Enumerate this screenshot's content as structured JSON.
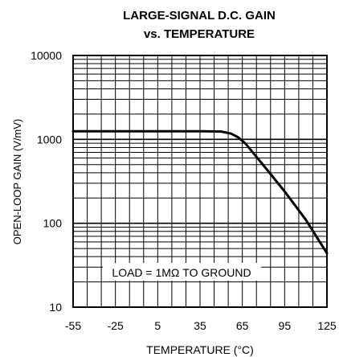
{
  "chart_data": {
    "type": "line",
    "title": "LARGE-SIGNAL D.C. GAIN",
    "subtitle": "vs. TEMPERATURE",
    "xlabel": "TEMPERATURE (°C)",
    "ylabel": "OPEN-LOOP GAIN (V/mV)",
    "xlim": [
      -55,
      125
    ],
    "ylim": [
      10,
      10000
    ],
    "yscale": "log",
    "grid": true,
    "x_ticks": [
      -55,
      -25,
      5,
      35,
      65,
      95,
      125
    ],
    "x_tick_labels": [
      "-55",
      "-25",
      "5",
      "35",
      "65",
      "95",
      "125"
    ],
    "y_ticks": [
      10,
      100,
      1000,
      10000
    ],
    "y_tick_labels": [
      "10",
      "100",
      "1000",
      "10000"
    ],
    "annotation": "LOAD = 1MΩ TO GROUND",
    "series": [
      {
        "x": [
          -55,
          -25,
          5,
          35,
          50,
          57,
          62,
          67,
          80,
          95,
          110,
          125
        ],
        "y": [
          1250,
          1250,
          1250,
          1250,
          1240,
          1170,
          1060,
          900,
          490,
          240,
          110,
          44
        ]
      }
    ],
    "colors": {
      "line": "#000000",
      "grid": "#000000",
      "background": "#ffffff"
    }
  }
}
